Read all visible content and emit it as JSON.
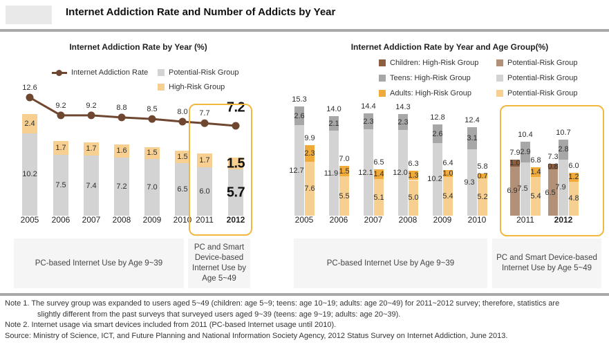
{
  "header": {
    "title": "Internet Addiction Rate and Number of Addicts by Year"
  },
  "colors": {
    "highlight_border": "#f2b73e",
    "line_brown": "#6f4630",
    "children_high": "#8d5f41",
    "children_potential": "#b39179",
    "teens_high": "#a7a7a7",
    "teens_potential": "#d3d3d3",
    "adults_high": "#efaa3a",
    "adults_potential": "#f7d091",
    "footer_box_bg": "#f5f5f5",
    "divider_gray": "#a8a8a8"
  },
  "footer_notes": {
    "note1_line1": "Note 1. The survey group was expanded to users aged 5~49 (children: age 5~9; teens: age 10~19; adults: age 20~49) for 2011~2012 survey; therefore, statistics are",
    "note1_line2": "slightly different from the past surveys that surveyed users aged 9~39 (teens: age 9~19; adults: age 20~39).",
    "note2": "Note 2. Internet usage via smart devices included from 2011 (PC-based Internet usage until 2010).",
    "source": "Source: Ministry of Science, ICT, and Future Planning and National Information Society Agency, 2012 Status Survey on Internet Addiction, June 2013."
  },
  "chart_data": [
    {
      "type": "bar",
      "subtype": "stacked-bar-with-line",
      "title": "Internet Addiction Rate by Year (%)",
      "categories": [
        "2005",
        "2006",
        "2007",
        "2008",
        "2009",
        "2010",
        "2011",
        "2012"
      ],
      "line_series": {
        "name": "Internet Addiction Rate",
        "values": [
          12.6,
          9.2,
          9.2,
          8.8,
          8.5,
          8.0,
          7.7,
          7.2
        ]
      },
      "bar_series": [
        {
          "name": "High-Risk Group",
          "values": [
            2.4,
            1.7,
            1.7,
            1.6,
            1.5,
            1.5,
            1.7,
            1.5
          ]
        },
        {
          "name": "Potential-Risk Group",
          "values": [
            10.2,
            7.5,
            7.4,
            7.2,
            7.0,
            6.5,
            6.0,
            5.7
          ]
        }
      ],
      "emphasized_year": "2012",
      "highlight_years": [
        "2011",
        "2012"
      ],
      "footers": [
        "PC-based Internet Use by Age 9~39",
        "PC and Smart Device-based Internet Use by Age 5~49"
      ]
    },
    {
      "type": "bar",
      "subtype": "grouped-stacked-bar",
      "title": "Internet Addiction Rate by Year and Age Group(%)",
      "categories": [
        "2005",
        "2006",
        "2007",
        "2008",
        "2009",
        "2010",
        "2011",
        "2012"
      ],
      "groups": [
        {
          "name": "Children",
          "high": [
            null,
            null,
            null,
            null,
            null,
            null,
            1.0,
            0.8
          ],
          "potential": [
            null,
            null,
            null,
            null,
            null,
            null,
            6.9,
            6.5
          ],
          "totals": [
            null,
            null,
            null,
            null,
            null,
            null,
            7.9,
            7.3
          ]
        },
        {
          "name": "Teens",
          "high": [
            2.6,
            2.1,
            2.3,
            2.3,
            2.6,
            3.1,
            2.9,
            2.8
          ],
          "potential": [
            12.7,
            11.9,
            12.1,
            12.0,
            10.2,
            9.3,
            7.5,
            7.9
          ],
          "totals": [
            15.3,
            14.0,
            14.4,
            14.3,
            12.8,
            12.4,
            10.4,
            10.7
          ]
        },
        {
          "name": "Adults",
          "high": [
            2.3,
            1.5,
            1.4,
            1.3,
            1.0,
            0.7,
            1.4,
            1.2
          ],
          "potential": [
            7.6,
            5.5,
            5.1,
            5.0,
            5.4,
            5.2,
            5.4,
            4.8
          ],
          "totals": [
            9.9,
            7.0,
            6.5,
            6.3,
            6.4,
            5.8,
            6.8,
            6.0
          ]
        }
      ],
      "legend_rows": [
        {
          "high": "Children: High-Risk Group",
          "potential": "Potential-Risk Group"
        },
        {
          "high": "Teens: High-Risk Group",
          "potential": "Potential-Risk Group"
        },
        {
          "high": "Adults: High-Risk Group",
          "potential": "Potential-Risk Group"
        }
      ],
      "emphasized_year": "2012",
      "highlight_years": [
        "2011",
        "2012"
      ],
      "footers": [
        "PC-based Internet Use by Age 9~39",
        "PC and Smart Device-based Internet Use by Age 5~49"
      ]
    }
  ]
}
